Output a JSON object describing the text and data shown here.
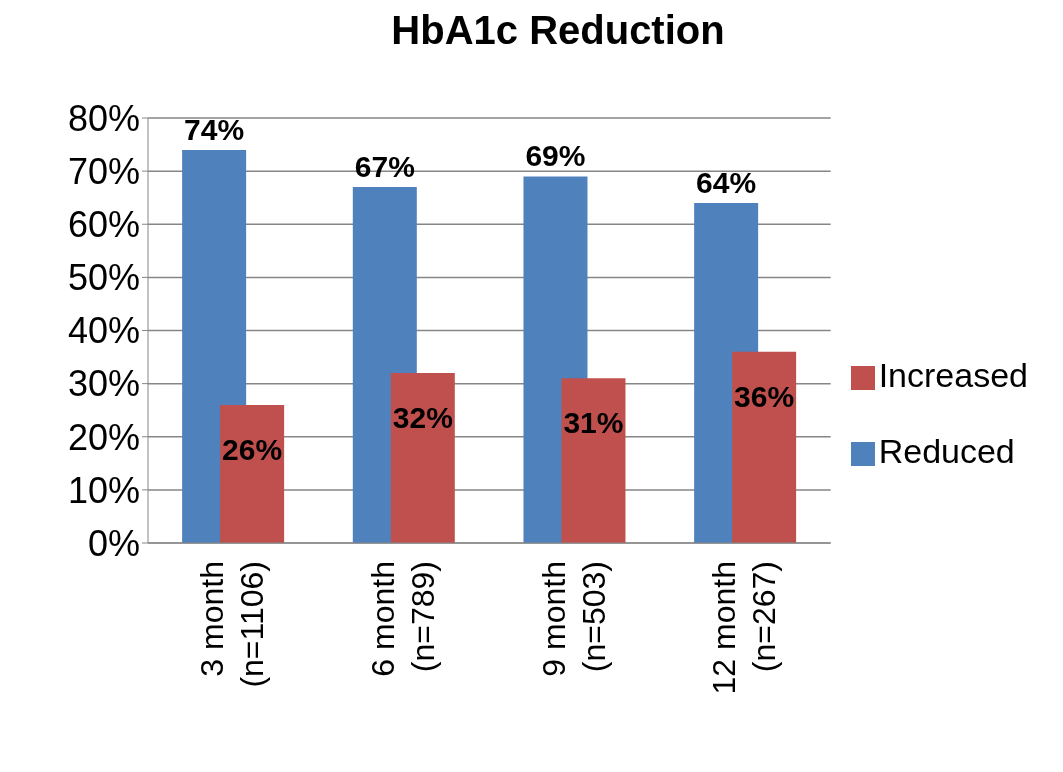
{
  "chart_data": {
    "type": "bar",
    "title": "HbA1c Reduction",
    "categories": [
      "3 month\n(n=1106)",
      "6 month\n(n=789)",
      "9 month\n(n=503)",
      "12 month\n(n=267)"
    ],
    "series": [
      {
        "name": "Reduced",
        "color": "#4f81bd",
        "values": [
          74,
          67,
          69,
          64
        ],
        "value_labels": [
          "74%",
          "67%",
          "69%",
          "64%"
        ]
      },
      {
        "name": "Increased",
        "color": "#c0504d",
        "values": [
          26,
          32,
          31,
          36
        ],
        "value_labels": [
          "26%",
          "32%",
          "31%",
          "36%"
        ]
      }
    ],
    "ylim": [
      0,
      80
    ],
    "yticks": [
      {
        "value": 0,
        "label": "0%"
      },
      {
        "value": 10,
        "label": "10%"
      },
      {
        "value": 20,
        "label": "20%"
      },
      {
        "value": 30,
        "label": "30%"
      },
      {
        "value": 40,
        "label": "40%"
      },
      {
        "value": 50,
        "label": "50%"
      },
      {
        "value": 60,
        "label": "60%"
      },
      {
        "value": 70,
        "label": "70%"
      },
      {
        "value": 80,
        "label": "80%"
      }
    ],
    "grid": "y",
    "legend": "right"
  }
}
